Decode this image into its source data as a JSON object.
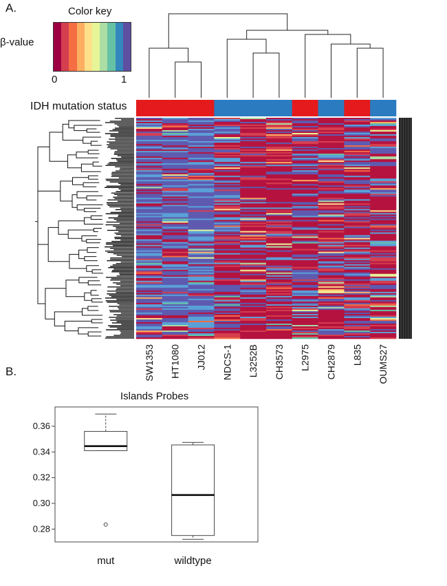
{
  "panel_a": {
    "letter": "A.",
    "color_key": {
      "title": "Color key",
      "label": "β-value",
      "min_label": "0",
      "max_label": "1",
      "colors": [
        "#9e0142",
        "#d53e4f",
        "#f46d43",
        "#fdae61",
        "#fee08b",
        "#e6f598",
        "#abdda4",
        "#66c2a5",
        "#3288bd",
        "#5e4fa2"
      ]
    },
    "mutation_label": "IDH mutation status",
    "status_colors": {
      "mut": "#e41a1c",
      "wildtype": "#2b7bc0"
    }
  },
  "panel_b": {
    "letter": "B."
  },
  "chart_data": [
    {
      "type": "heatmap",
      "title": "",
      "columns": [
        "SW1353",
        "HT1080",
        "JJ012",
        "NDCS-1",
        "L3252B",
        "CH3573",
        "L2975",
        "CH2879",
        "L835",
        "OUMS27"
      ],
      "idh_status": [
        "mut",
        "mut",
        "mut",
        "wildtype",
        "wildtype",
        "wildtype",
        "mut",
        "wildtype",
        "mut",
        "wildtype"
      ],
      "value_range": [
        0,
        1
      ],
      "row_dendrogram": true,
      "column_dendrogram": true
    },
    {
      "type": "box",
      "title": "Islands Probes",
      "categories": [
        "mut",
        "wildtype"
      ],
      "ylim": [
        0.27,
        0.375
      ],
      "yticks": [
        0.28,
        0.3,
        0.32,
        0.34,
        0.36
      ],
      "boxes": [
        {
          "name": "mut",
          "min": 0.341,
          "q1": 0.341,
          "median": 0.3445,
          "q3": 0.356,
          "max": 0.3695,
          "outliers": [
            0.2835
          ]
        },
        {
          "name": "wildtype",
          "min": 0.272,
          "q1": 0.275,
          "median": 0.3065,
          "q3": 0.3455,
          "max": 0.3475,
          "outliers": []
        }
      ]
    }
  ]
}
